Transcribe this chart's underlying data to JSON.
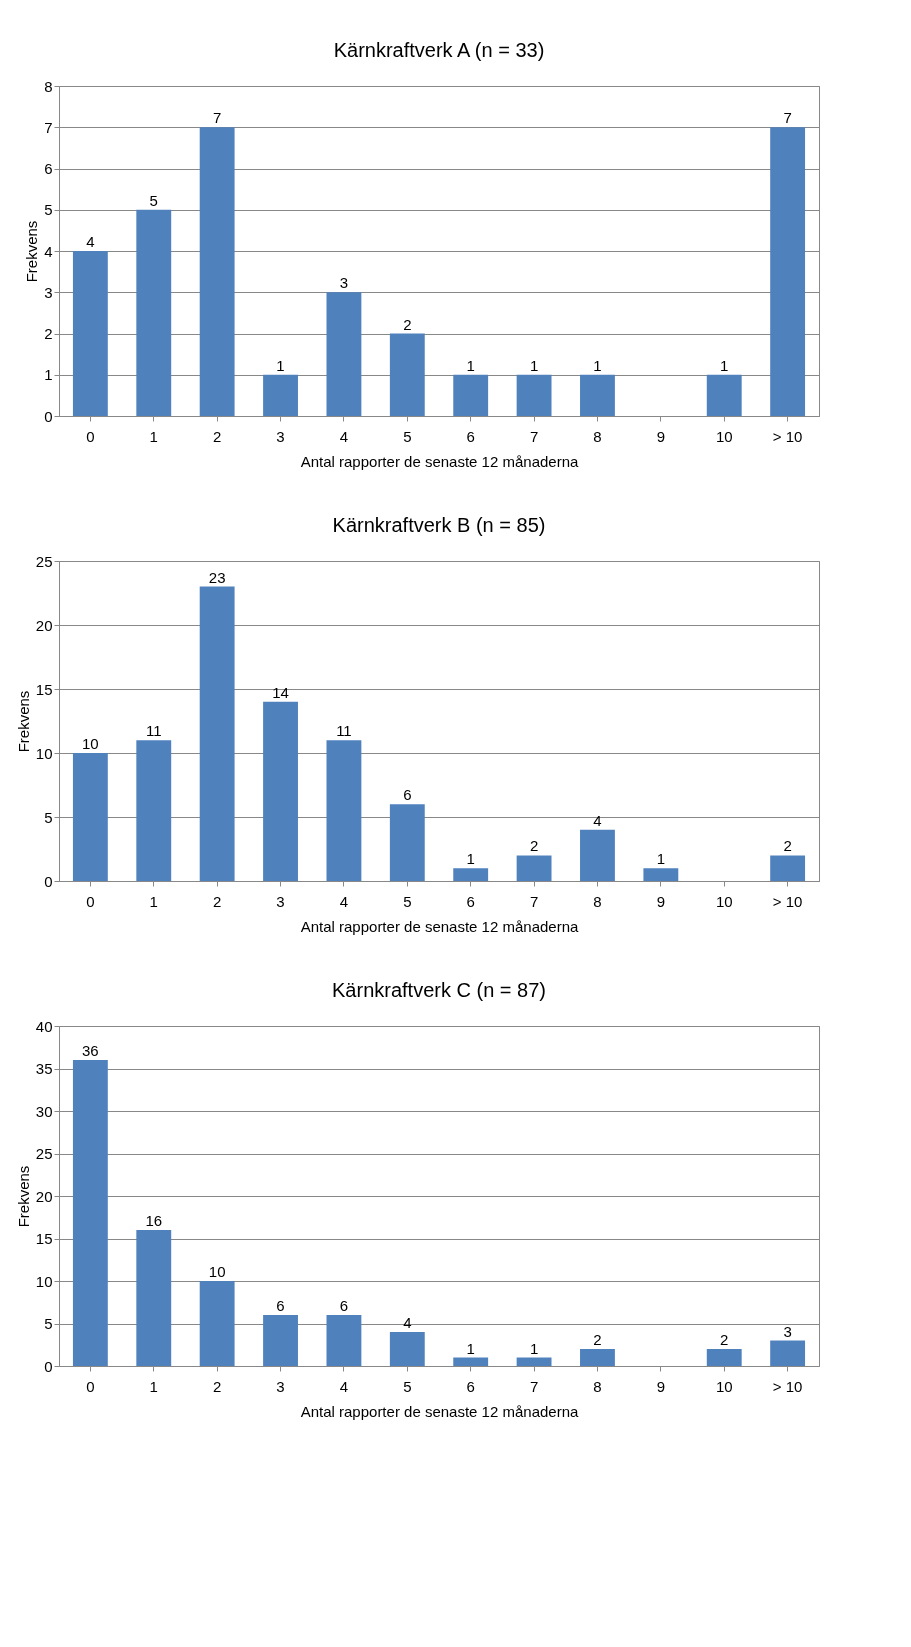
{
  "chart_data": [
    {
      "type": "bar",
      "title": "Kärnkraftverk A (n = 33)",
      "xlabel": "Antal rapporter de senaste 12 månaderna",
      "ylabel": "Frekvens",
      "categories": [
        "0",
        "1",
        "2",
        "3",
        "4",
        "5",
        "6",
        "7",
        "8",
        "9",
        "10",
        "> 10"
      ],
      "values": [
        4,
        5,
        7,
        1,
        3,
        2,
        1,
        1,
        1,
        0,
        1,
        7
      ],
      "value_labels": [
        "4",
        "5",
        "7",
        "1",
        "3",
        "2",
        "1",
        "1",
        "1",
        null,
        "1",
        "7"
      ],
      "color": "#4f81bd",
      "ylim": [
        0,
        8
      ],
      "yticks": [
        0,
        1,
        2,
        3,
        4,
        5,
        6,
        7,
        8
      ],
      "grid": "y"
    },
    {
      "type": "bar",
      "title": "Kärnkraftverk B (n = 85)",
      "xlabel": "Antal rapporter de senaste 12 månaderna",
      "ylabel": "Frekvens",
      "categories": [
        "0",
        "1",
        "2",
        "3",
        "4",
        "5",
        "6",
        "7",
        "8",
        "9",
        "10",
        "> 10"
      ],
      "values": [
        10,
        11,
        23,
        14,
        11,
        6,
        1,
        2,
        4,
        1,
        0,
        2
      ],
      "value_labels": [
        "10",
        "11",
        "23",
        "14",
        "11",
        "6",
        "1",
        "2",
        "4",
        "1",
        null,
        "2"
      ],
      "color": "#4f81bd",
      "ylim": [
        0,
        25
      ],
      "yticks": [
        0,
        5,
        10,
        15,
        20,
        25
      ],
      "grid": "y"
    },
    {
      "type": "bar",
      "title": "Kärnkraftverk C (n = 87)",
      "xlabel": "Antal rapporter de senaste 12 månaderna",
      "ylabel": "Frekvens",
      "categories": [
        "0",
        "1",
        "2",
        "3",
        "4",
        "5",
        "6",
        "7",
        "8",
        "9",
        "10",
        "> 10"
      ],
      "values": [
        36,
        16,
        10,
        6,
        6,
        4,
        1,
        1,
        2,
        0,
        2,
        3
      ],
      "value_labels": [
        "36",
        "16",
        "10",
        "6",
        "6",
        "4",
        "1",
        "1",
        "2",
        null,
        "2",
        "3"
      ],
      "color": "#4f81bd",
      "ylim": [
        0,
        40
      ],
      "yticks": [
        0,
        5,
        10,
        15,
        20,
        25,
        30,
        35,
        40
      ],
      "grid": "y"
    }
  ]
}
